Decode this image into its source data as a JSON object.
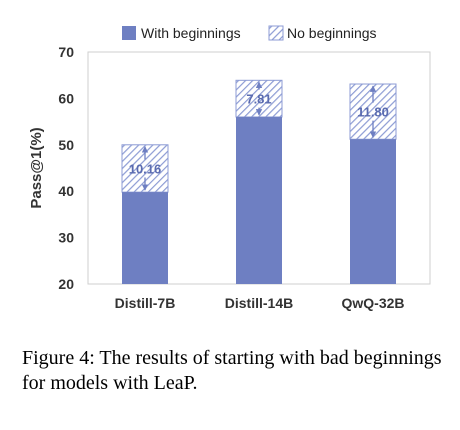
{
  "caption": "Figure 4: The results of starting with bad beginnings for models with LeaP.",
  "chart_data": {
    "type": "bar",
    "ylabel": "Pass@1(%)",
    "xlabel": "",
    "ylim": [
      20,
      70
    ],
    "yticks": [
      20,
      30,
      40,
      50,
      60,
      70
    ],
    "categories": [
      "Distill-7B",
      "Distill-14B",
      "QwQ-32B"
    ],
    "legend_position": "top",
    "series": [
      {
        "name": "With beginnings",
        "values": [
          39.8,
          56.0,
          51.2
        ],
        "color": "#6e7fc2",
        "pattern": "solid"
      },
      {
        "name": "No beginnings",
        "values": [
          50.0,
          63.9,
          63.1
        ],
        "color": "#8c9bd4",
        "pattern": "hatched"
      }
    ],
    "difference_labels": [
      "10.16",
      "7.81",
      "11.80"
    ],
    "grid": false
  }
}
